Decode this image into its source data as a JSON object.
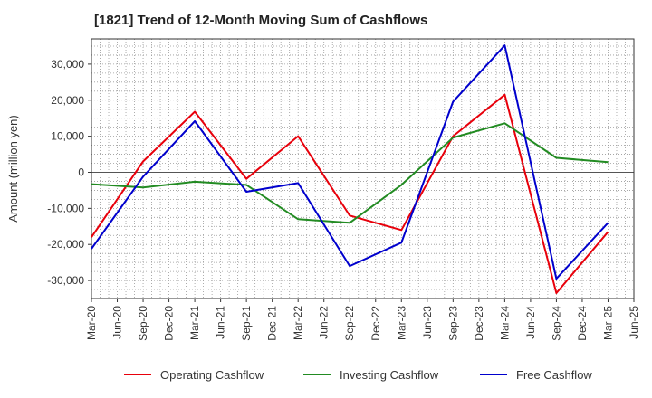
{
  "chart_data": {
    "type": "line",
    "title": "[1821]  Trend of 12-Month Moving Sum of Cashflows",
    "xlabel": "",
    "ylabel": "Amount (million yen)",
    "ylim": [
      -35000,
      37000
    ],
    "yticks": [
      -30000,
      -20000,
      -10000,
      0,
      10000,
      20000,
      30000
    ],
    "ytick_labels": [
      "-30,000",
      "-20,000",
      "-10,000",
      "0",
      "10,000",
      "20,000",
      "30,000"
    ],
    "categories": [
      "Mar-20",
      "Jun-20",
      "Sep-20",
      "Dec-20",
      "Mar-21",
      "Jun-21",
      "Sep-21",
      "Dec-21",
      "Mar-22",
      "Jun-22",
      "Sep-22",
      "Dec-22",
      "Mar-23",
      "Jun-23",
      "Sep-23",
      "Dec-23",
      "Mar-24",
      "Jun-24",
      "Sep-24",
      "Dec-24",
      "Mar-25",
      "Jun-25"
    ],
    "grid": true,
    "legend_position": "bottom",
    "series": [
      {
        "name": "Operating Cashflow",
        "color": "#e8000b",
        "values": [
          -18000,
          null,
          3000,
          null,
          16800,
          null,
          -1800,
          null,
          10000,
          null,
          -12000,
          null,
          -16000,
          null,
          10000,
          null,
          21500,
          null,
          -33500,
          null,
          -16500,
          null
        ]
      },
      {
        "name": "Investing Cashflow",
        "color": "#228b22",
        "values": [
          -3300,
          null,
          -4200,
          null,
          -2600,
          null,
          -3500,
          null,
          -13000,
          null,
          -14000,
          null,
          -3500,
          null,
          9600,
          null,
          13600,
          null,
          4000,
          null,
          2800,
          null
        ]
      },
      {
        "name": "Free Cashflow",
        "color": "#0000cd",
        "values": [
          -21200,
          null,
          -1200,
          null,
          14200,
          null,
          -5400,
          null,
          -3000,
          null,
          -26000,
          null,
          -19500,
          null,
          19600,
          null,
          35200,
          null,
          -29500,
          null,
          -14000,
          null
        ]
      }
    ]
  }
}
